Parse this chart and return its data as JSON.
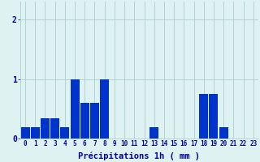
{
  "hours": [
    0,
    1,
    2,
    3,
    4,
    5,
    6,
    7,
    8,
    9,
    10,
    11,
    12,
    13,
    14,
    15,
    16,
    17,
    18,
    19,
    20,
    21,
    22,
    23
  ],
  "values": [
    0.2,
    0.2,
    0.35,
    0.35,
    0.2,
    1.0,
    0.6,
    0.6,
    1.0,
    0.0,
    0.0,
    0.0,
    0.0,
    0.2,
    0.0,
    0.0,
    0.0,
    0.0,
    0.75,
    0.75,
    0.2,
    0.0,
    0.0,
    0.0
  ],
  "bar_color": "#0033cc",
  "background_color": "#dff2f2",
  "grid_color": "#aacfcf",
  "axis_color": "#000099",
  "xlabel": "Précipitations 1h ( mm )",
  "xlabel_fontsize": 7.5,
  "tick_fontsize": 5.5,
  "ytick_fontsize": 7,
  "yticks": [
    0,
    1,
    2
  ],
  "ylim": [
    0,
    2.3
  ],
  "xlim": [
    -0.5,
    23.5
  ]
}
